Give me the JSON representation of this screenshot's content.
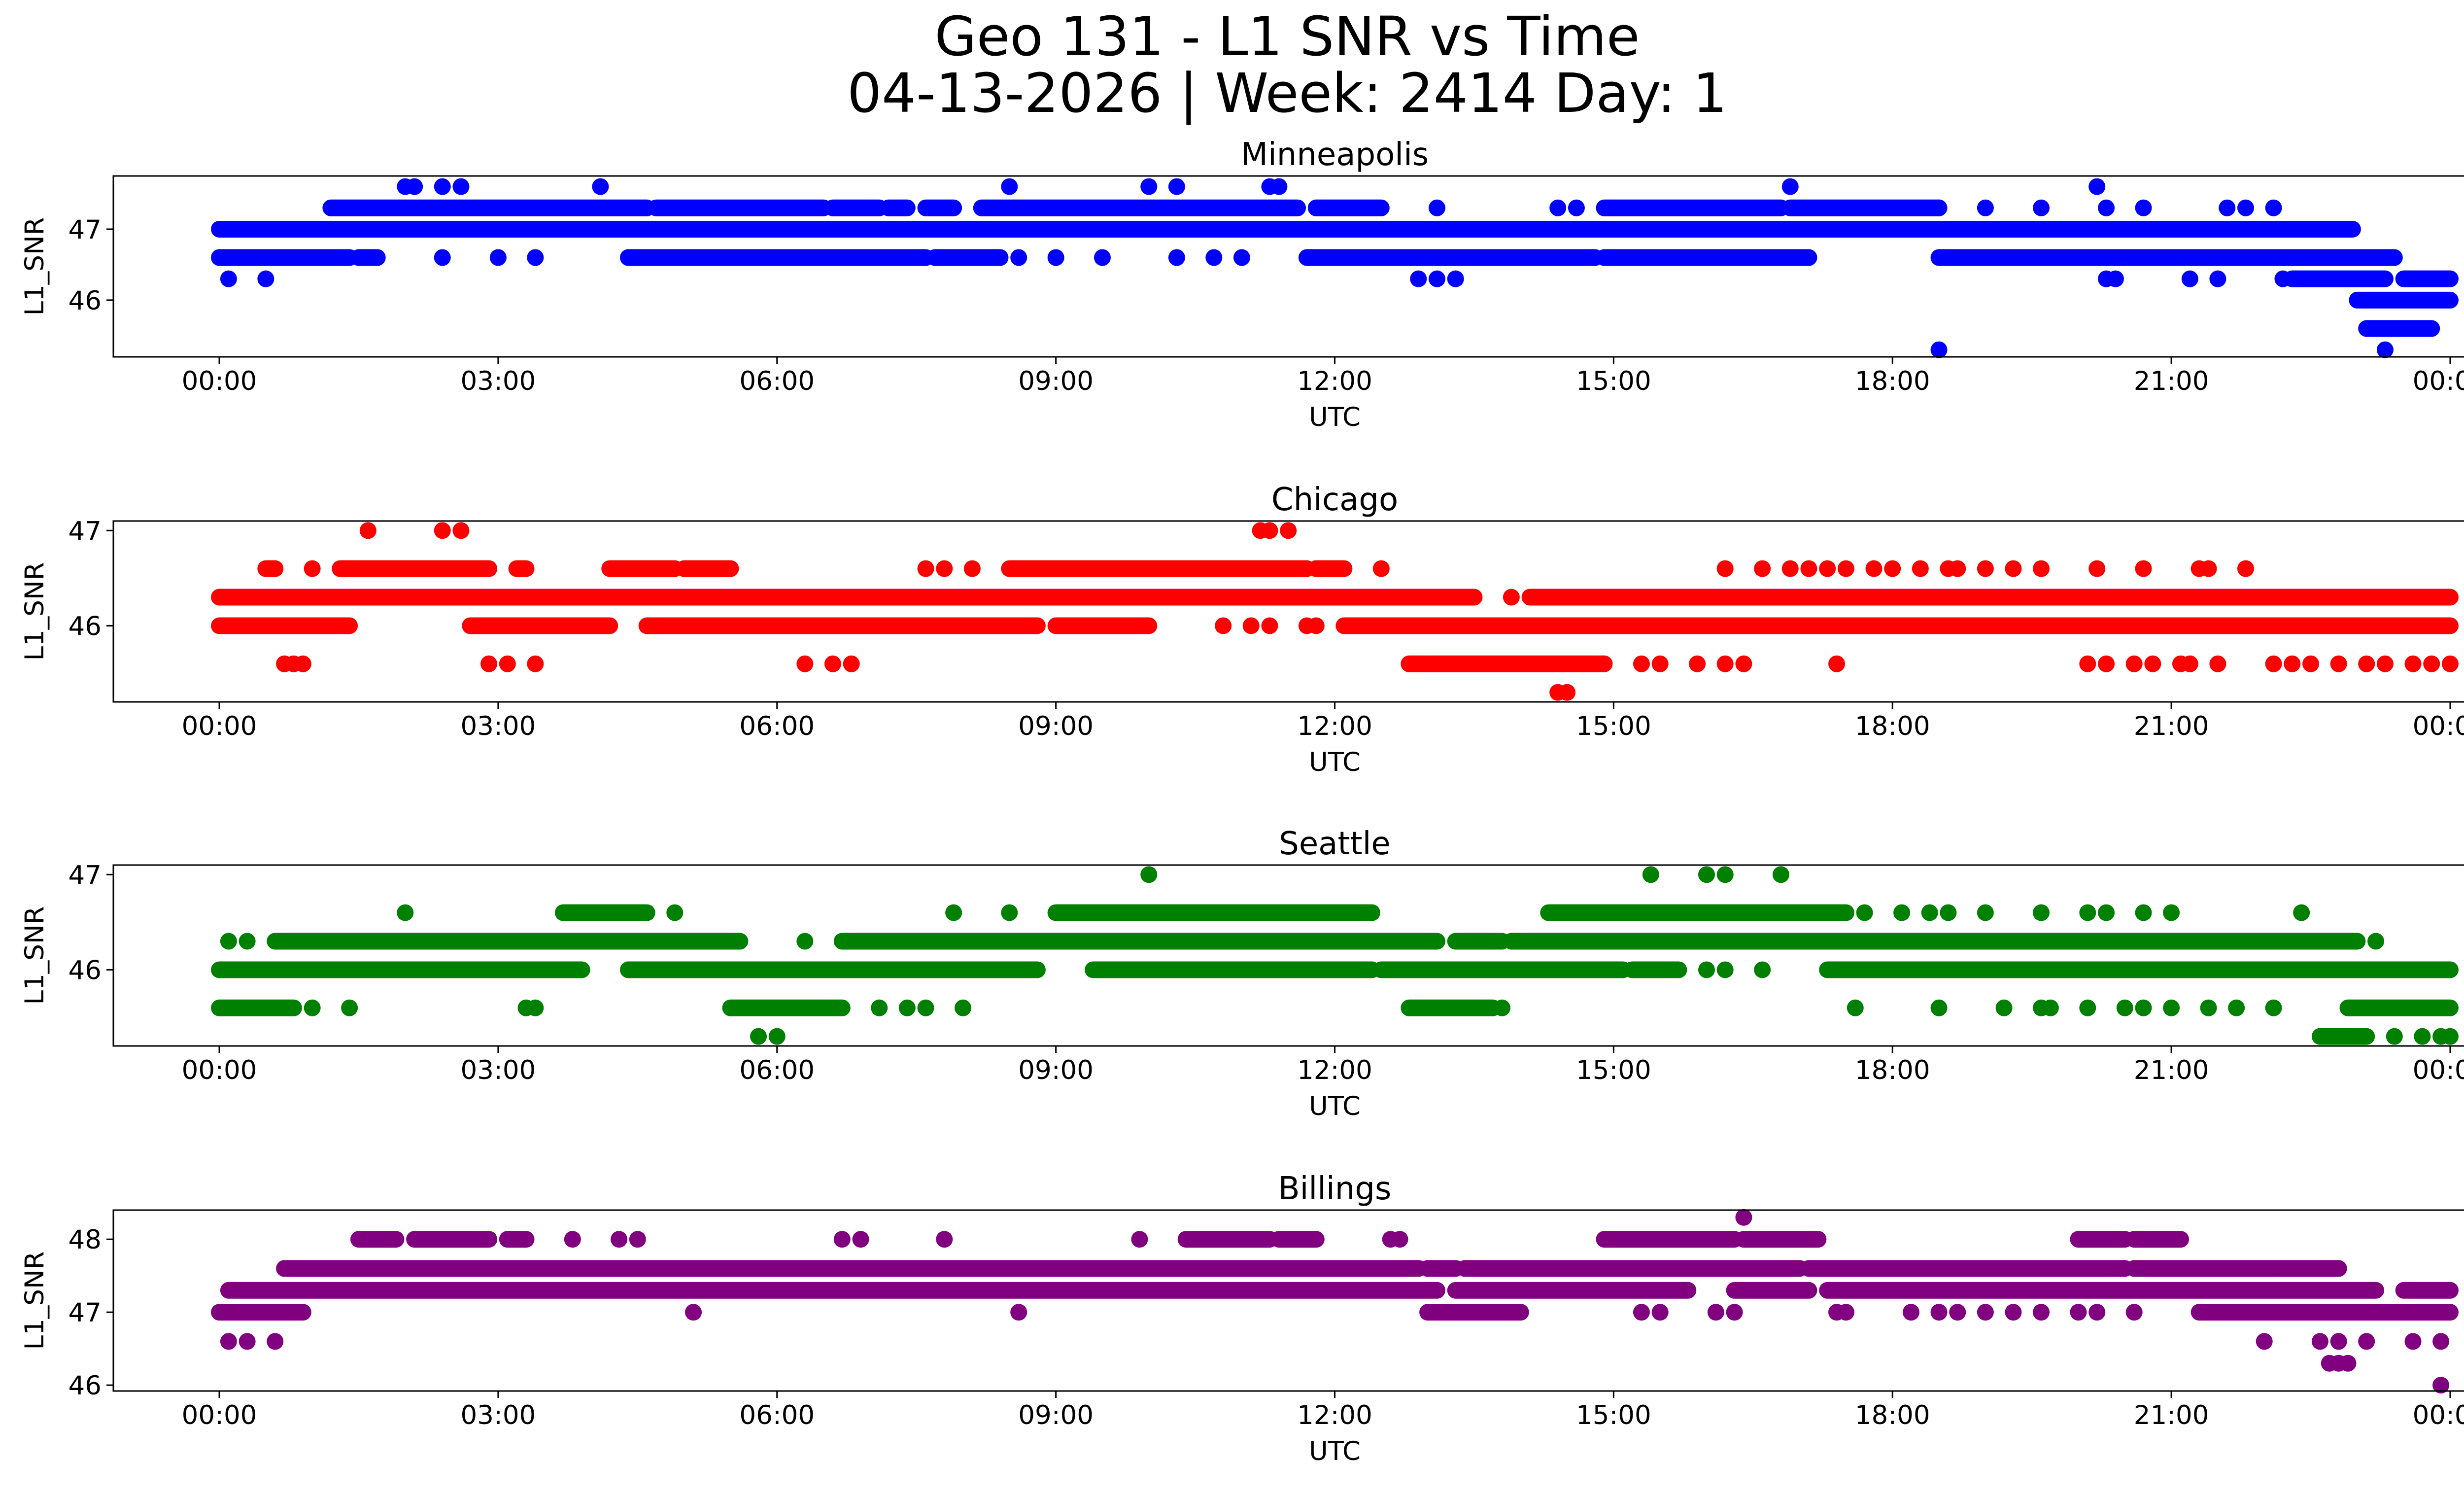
{
  "figure": {
    "title_line1": "Geo 131 - L1 SNR vs Time",
    "title_line2": "04-13-2026 | Week: 2414 Day: 1"
  },
  "chart_data": [
    {
      "type": "scatter",
      "title": "Minneapolis",
      "xlabel": "UTC",
      "ylabel": "L1_SNR",
      "color": "#0000ff",
      "xlim": [
        -1.14,
        25.14
      ],
      "ylim": [
        45.2,
        47.75
      ],
      "x_ticks": [
        "00:00",
        "03:00",
        "06:00",
        "09:00",
        "12:00",
        "15:00",
        "18:00",
        "21:00",
        "00:00"
      ],
      "y_ticks": [
        46,
        47
      ],
      "levels": [
        {
          "y": 47.0,
          "segments": [
            [
              0,
              22.95
            ]
          ]
        },
        {
          "y": 46.6,
          "segments": [
            [
              0,
              1.4
            ],
            [
              1.5,
              1.7
            ],
            [
              4.4,
              7.6
            ],
            [
              7.7,
              8.4
            ],
            [
              11.7,
              14.8
            ],
            [
              14.9,
              17.1
            ],
            [
              18.5,
              23.4
            ]
          ]
        },
        {
          "y": 47.3,
          "segments": [
            [
              1.2,
              4.6
            ],
            [
              4.7,
              6.5
            ],
            [
              6.6,
              7.1
            ],
            [
              7.2,
              7.4
            ],
            [
              7.6,
              7.9
            ],
            [
              8.2,
              11.6
            ],
            [
              11.8,
              12.5
            ],
            [
              14.9,
              16.8
            ],
            [
              16.9,
              18.5
            ]
          ]
        },
        {
          "y": 46.3,
          "segments": [
            [
              22.3,
              23.3
            ],
            [
              23.5,
              24
            ]
          ]
        },
        {
          "y": 46.0,
          "segments": [
            [
              23.0,
              24
            ]
          ]
        },
        {
          "y": 45.6,
          "segments": [
            [
              23.1,
              23.8
            ]
          ]
        }
      ],
      "points": [
        [
          0.1,
          46.3
        ],
        [
          0.5,
          46.3
        ],
        [
          2.0,
          47.6
        ],
        [
          2.1,
          47.6
        ],
        [
          2.4,
          47.6
        ],
        [
          2.6,
          47.6
        ],
        [
          2.4,
          46.6
        ],
        [
          3.0,
          46.6
        ],
        [
          3.4,
          46.6
        ],
        [
          4.1,
          47.6
        ],
        [
          8.5,
          47.6
        ],
        [
          8.6,
          46.6
        ],
        [
          9.0,
          46.6
        ],
        [
          9.5,
          46.6
        ],
        [
          10.0,
          47.6
        ],
        [
          10.3,
          47.6
        ],
        [
          10.3,
          46.6
        ],
        [
          10.7,
          46.6
        ],
        [
          11.0,
          46.6
        ],
        [
          11.3,
          47.6
        ],
        [
          11.4,
          47.6
        ],
        [
          12.9,
          46.3
        ],
        [
          13.1,
          46.3
        ],
        [
          13.3,
          46.3
        ],
        [
          13.1,
          47.3
        ],
        [
          14.4,
          47.3
        ],
        [
          14.6,
          47.3
        ],
        [
          16.9,
          47.6
        ],
        [
          18.5,
          45.3
        ],
        [
          18.5,
          47.3
        ],
        [
          19.0,
          47.3
        ],
        [
          19.6,
          47.3
        ],
        [
          20.2,
          47.6
        ],
        [
          20.3,
          47.3
        ],
        [
          20.7,
          47.3
        ],
        [
          20.3,
          46.3
        ],
        [
          20.4,
          46.3
        ],
        [
          21.2,
          46.3
        ],
        [
          21.5,
          46.3
        ],
        [
          21.6,
          47.3
        ],
        [
          21.8,
          47.3
        ],
        [
          22.1,
          47.3
        ],
        [
          23.3,
          45.3
        ],
        [
          22.2,
          46.3
        ]
      ]
    },
    {
      "type": "scatter",
      "title": "Chicago",
      "xlabel": "UTC",
      "ylabel": "L1_SNR",
      "color": "#ff0000",
      "xlim": [
        -1.14,
        25.14
      ],
      "ylim": [
        45.2,
        47.1
      ],
      "x_ticks": [
        "00:00",
        "03:00",
        "06:00",
        "09:00",
        "12:00",
        "15:00",
        "18:00",
        "21:00",
        "00:00"
      ],
      "y_ticks": [
        46,
        47
      ],
      "levels": [
        {
          "y": 46.3,
          "segments": [
            [
              0,
              13.5
            ],
            [
              14.1,
              24
            ]
          ]
        },
        {
          "y": 46.0,
          "segments": [
            [
              0,
              1.4
            ],
            [
              2.7,
              4.2
            ],
            [
              4.6,
              8.8
            ],
            [
              9.0,
              10.0
            ],
            [
              12.1,
              24
            ]
          ]
        },
        {
          "y": 46.6,
          "segments": [
            [
              0.5,
              0.6
            ],
            [
              1.3,
              2.9
            ],
            [
              3.2,
              3.3
            ],
            [
              4.2,
              4.9
            ],
            [
              5.0,
              5.5
            ],
            [
              8.5,
              11.7
            ],
            [
              11.8,
              12.1
            ]
          ]
        },
        {
          "y": 45.6,
          "segments": [
            [
              12.8,
              14.9
            ],
            [
              17.4,
              17.4
            ]
          ]
        }
      ],
      "points": [
        [
          0.7,
          45.6
        ],
        [
          0.8,
          45.6
        ],
        [
          0.9,
          45.6
        ],
        [
          1.6,
          47.0
        ],
        [
          2.4,
          47.0
        ],
        [
          2.6,
          47.0
        ],
        [
          2.9,
          45.6
        ],
        [
          3.1,
          45.6
        ],
        [
          3.4,
          45.6
        ],
        [
          6.3,
          45.6
        ],
        [
          6.6,
          45.6
        ],
        [
          6.8,
          45.6
        ],
        [
          1.0,
          46.6
        ],
        [
          7.6,
          46.6
        ],
        [
          7.8,
          46.6
        ],
        [
          8.1,
          46.6
        ],
        [
          9.5,
          46.0
        ],
        [
          10.8,
          46.0
        ],
        [
          11.2,
          47.0
        ],
        [
          11.3,
          47.0
        ],
        [
          11.5,
          47.0
        ],
        [
          11.1,
          46.0
        ],
        [
          11.3,
          46.0
        ],
        [
          11.7,
          46.0
        ],
        [
          11.8,
          46.0
        ],
        [
          12.5,
          46.6
        ],
        [
          13.9,
          46.3
        ],
        [
          14.4,
          45.3
        ],
        [
          14.5,
          45.3
        ],
        [
          15.3,
          45.6
        ],
        [
          15.5,
          45.6
        ],
        [
          15.9,
          45.6
        ],
        [
          16.2,
          45.6
        ],
        [
          16.4,
          45.6
        ],
        [
          16.2,
          46.6
        ],
        [
          16.6,
          46.6
        ],
        [
          16.9,
          46.6
        ],
        [
          17.1,
          46.6
        ],
        [
          17.3,
          46.6
        ],
        [
          17.5,
          46.6
        ],
        [
          17.8,
          46.6
        ],
        [
          18.0,
          46.6
        ],
        [
          18.3,
          46.6
        ],
        [
          18.6,
          46.6
        ],
        [
          18.7,
          46.6
        ],
        [
          19.0,
          46.6
        ],
        [
          19.3,
          46.6
        ],
        [
          19.6,
          46.6
        ],
        [
          20.2,
          46.6
        ],
        [
          20.7,
          46.6
        ],
        [
          21.3,
          46.6
        ],
        [
          21.4,
          46.6
        ],
        [
          21.8,
          46.6
        ],
        [
          20.1,
          45.6
        ],
        [
          20.3,
          45.6
        ],
        [
          20.6,
          45.6
        ],
        [
          20.8,
          45.6
        ],
        [
          21.1,
          45.6
        ],
        [
          21.2,
          45.6
        ],
        [
          21.5,
          45.6
        ],
        [
          22.1,
          45.6
        ],
        [
          22.3,
          45.6
        ],
        [
          22.5,
          45.6
        ],
        [
          22.8,
          45.6
        ],
        [
          23.1,
          45.6
        ],
        [
          23.3,
          45.6
        ],
        [
          23.6,
          45.6
        ],
        [
          23.8,
          45.6
        ],
        [
          24.0,
          45.6
        ]
      ]
    },
    {
      "type": "scatter",
      "title": "Seattle",
      "xlabel": "UTC",
      "ylabel": "L1_SNR",
      "color": "#008000",
      "xlim": [
        -1.14,
        25.14
      ],
      "ylim": [
        45.2,
        47.1
      ],
      "x_ticks": [
        "00:00",
        "03:00",
        "06:00",
        "09:00",
        "12:00",
        "15:00",
        "18:00",
        "21:00",
        "00:00"
      ],
      "y_ticks": [
        46,
        47
      ],
      "levels": [
        {
          "y": 46.0,
          "segments": [
            [
              0,
              3.9
            ],
            [
              4.4,
              8.8
            ],
            [
              9.4,
              12.4
            ],
            [
              12.5,
              15.1
            ],
            [
              15.2,
              15.7
            ],
            [
              17.3,
              24
            ]
          ]
        },
        {
          "y": 46.3,
          "segments": [
            [
              0.6,
              5.6
            ],
            [
              6.7,
              13.1
            ],
            [
              13.3,
              13.8
            ],
            [
              13.9,
              23.0
            ]
          ]
        },
        {
          "y": 45.6,
          "segments": [
            [
              0,
              0.8
            ],
            [
              5.5,
              6.7
            ],
            [
              12.8,
              13.7
            ],
            [
              22.9,
              24
            ]
          ]
        },
        {
          "y": 46.6,
          "segments": [
            [
              3.7,
              4.6
            ],
            [
              9.0,
              12.4
            ],
            [
              14.3,
              17.5
            ]
          ]
        },
        {
          "y": 45.3,
          "segments": [
            [
              22.6,
              23.1
            ]
          ]
        }
      ],
      "points": [
        [
          0.1,
          46.3
        ],
        [
          0.3,
          46.3
        ],
        [
          1.0,
          45.6
        ],
        [
          1.4,
          45.6
        ],
        [
          2.0,
          46.6
        ],
        [
          3.3,
          45.6
        ],
        [
          3.4,
          45.6
        ],
        [
          4.6,
          46.0
        ],
        [
          4.9,
          46.6
        ],
        [
          5.8,
          45.3
        ],
        [
          6.0,
          45.3
        ],
        [
          6.3,
          46.3
        ],
        [
          7.1,
          45.6
        ],
        [
          7.4,
          45.6
        ],
        [
          7.6,
          45.6
        ],
        [
          8.0,
          45.6
        ],
        [
          7.9,
          46.6
        ],
        [
          8.5,
          46.6
        ],
        [
          10.0,
          47.0
        ],
        [
          13.8,
          45.6
        ],
        [
          15.4,
          47.0
        ],
        [
          16.0,
          47.0
        ],
        [
          16.2,
          47.0
        ],
        [
          16.8,
          47.0
        ],
        [
          15.3,
          46.0
        ],
        [
          16.0,
          46.0
        ],
        [
          16.2,
          46.0
        ],
        [
          16.6,
          46.0
        ],
        [
          17.0,
          46.3
        ],
        [
          17.7,
          46.6
        ],
        [
          18.1,
          46.6
        ],
        [
          18.4,
          46.6
        ],
        [
          18.6,
          46.6
        ],
        [
          19.0,
          46.6
        ],
        [
          19.6,
          46.6
        ],
        [
          20.1,
          46.6
        ],
        [
          20.3,
          46.6
        ],
        [
          20.7,
          46.6
        ],
        [
          21.0,
          46.6
        ],
        [
          17.6,
          45.6
        ],
        [
          18.5,
          45.6
        ],
        [
          19.2,
          45.6
        ],
        [
          19.6,
          45.6
        ],
        [
          19.7,
          45.6
        ],
        [
          20.1,
          45.6
        ],
        [
          20.5,
          45.6
        ],
        [
          20.7,
          45.6
        ],
        [
          21.0,
          45.6
        ],
        [
          21.4,
          45.6
        ],
        [
          21.7,
          45.6
        ],
        [
          22.1,
          45.6
        ],
        [
          22.4,
          46.6
        ],
        [
          23.2,
          46.3
        ],
        [
          23.4,
          45.3
        ],
        [
          23.7,
          45.3
        ],
        [
          23.9,
          45.3
        ],
        [
          24.0,
          45.3
        ]
      ]
    },
    {
      "type": "scatter",
      "title": "Billings",
      "xlabel": "UTC",
      "ylabel": "L1_SNR",
      "color": "#800080",
      "xlim": [
        -1.14,
        25.14
      ],
      "ylim": [
        45.92,
        48.4
      ],
      "x_ticks": [
        "00:00",
        "03:00",
        "06:00",
        "09:00",
        "12:00",
        "15:00",
        "18:00",
        "21:00",
        "00:00"
      ],
      "y_ticks": [
        46,
        47,
        48
      ],
      "levels": [
        {
          "y": 47.0,
          "segments": [
            [
              0,
              0.9
            ]
          ]
        },
        {
          "y": 47.3,
          "segments": [
            [
              0.1,
              13.1
            ],
            [
              13.3,
              15.8
            ],
            [
              16.3,
              17.1
            ],
            [
              17.3,
              23.2
            ],
            [
              23.5,
              24
            ]
          ]
        },
        {
          "y": 47.6,
          "segments": [
            [
              0.7,
              12.9
            ],
            [
              13.0,
              13.3
            ],
            [
              13.4,
              17.0
            ],
            [
              17.1,
              20.5
            ],
            [
              20.6,
              22.8
            ]
          ]
        },
        {
          "y": 48.0,
          "segments": [
            [
              1.5,
              1.9
            ],
            [
              2.1,
              2.9
            ],
            [
              3.1,
              3.3
            ],
            [
              10.4,
              11.3
            ],
            [
              11.4,
              11.8
            ],
            [
              14.9,
              16.3
            ],
            [
              16.4,
              17.2
            ],
            [
              20.0,
              20.5
            ],
            [
              20.6,
              21.1
            ]
          ]
        },
        {
          "y": 47.0,
          "segments": [
            [
              13.0,
              14.0
            ],
            [
              21.3,
              24
            ]
          ]
        }
      ],
      "points": [
        [
          0.1,
          46.6
        ],
        [
          0.3,
          46.6
        ],
        [
          0.6,
          46.6
        ],
        [
          3.8,
          48.0
        ],
        [
          4.3,
          48.0
        ],
        [
          4.5,
          48.0
        ],
        [
          5.1,
          47.0
        ],
        [
          6.7,
          48.0
        ],
        [
          6.9,
          48.0
        ],
        [
          7.8,
          48.0
        ],
        [
          8.6,
          47.0
        ],
        [
          9.9,
          48.0
        ],
        [
          12.6,
          48.0
        ],
        [
          12.7,
          48.0
        ],
        [
          16.4,
          48.3
        ],
        [
          15.3,
          47.0
        ],
        [
          15.5,
          47.0
        ],
        [
          16.1,
          47.0
        ],
        [
          16.3,
          47.0
        ],
        [
          17.4,
          47.0
        ],
        [
          17.5,
          47.0
        ],
        [
          18.2,
          47.0
        ],
        [
          18.5,
          47.0
        ],
        [
          18.7,
          47.0
        ],
        [
          19.0,
          47.0
        ],
        [
          19.3,
          47.0
        ],
        [
          19.6,
          47.0
        ],
        [
          20.0,
          47.0
        ],
        [
          20.2,
          47.0
        ],
        [
          20.6,
          47.0
        ],
        [
          22.1,
          47.6
        ],
        [
          22.0,
          46.6
        ],
        [
          22.6,
          46.6
        ],
        [
          22.8,
          46.6
        ],
        [
          23.1,
          46.6
        ],
        [
          23.6,
          46.6
        ],
        [
          23.9,
          46.6
        ],
        [
          22.7,
          46.3
        ],
        [
          22.8,
          46.3
        ],
        [
          22.9,
          46.3
        ],
        [
          23.9,
          46.0
        ]
      ]
    }
  ]
}
